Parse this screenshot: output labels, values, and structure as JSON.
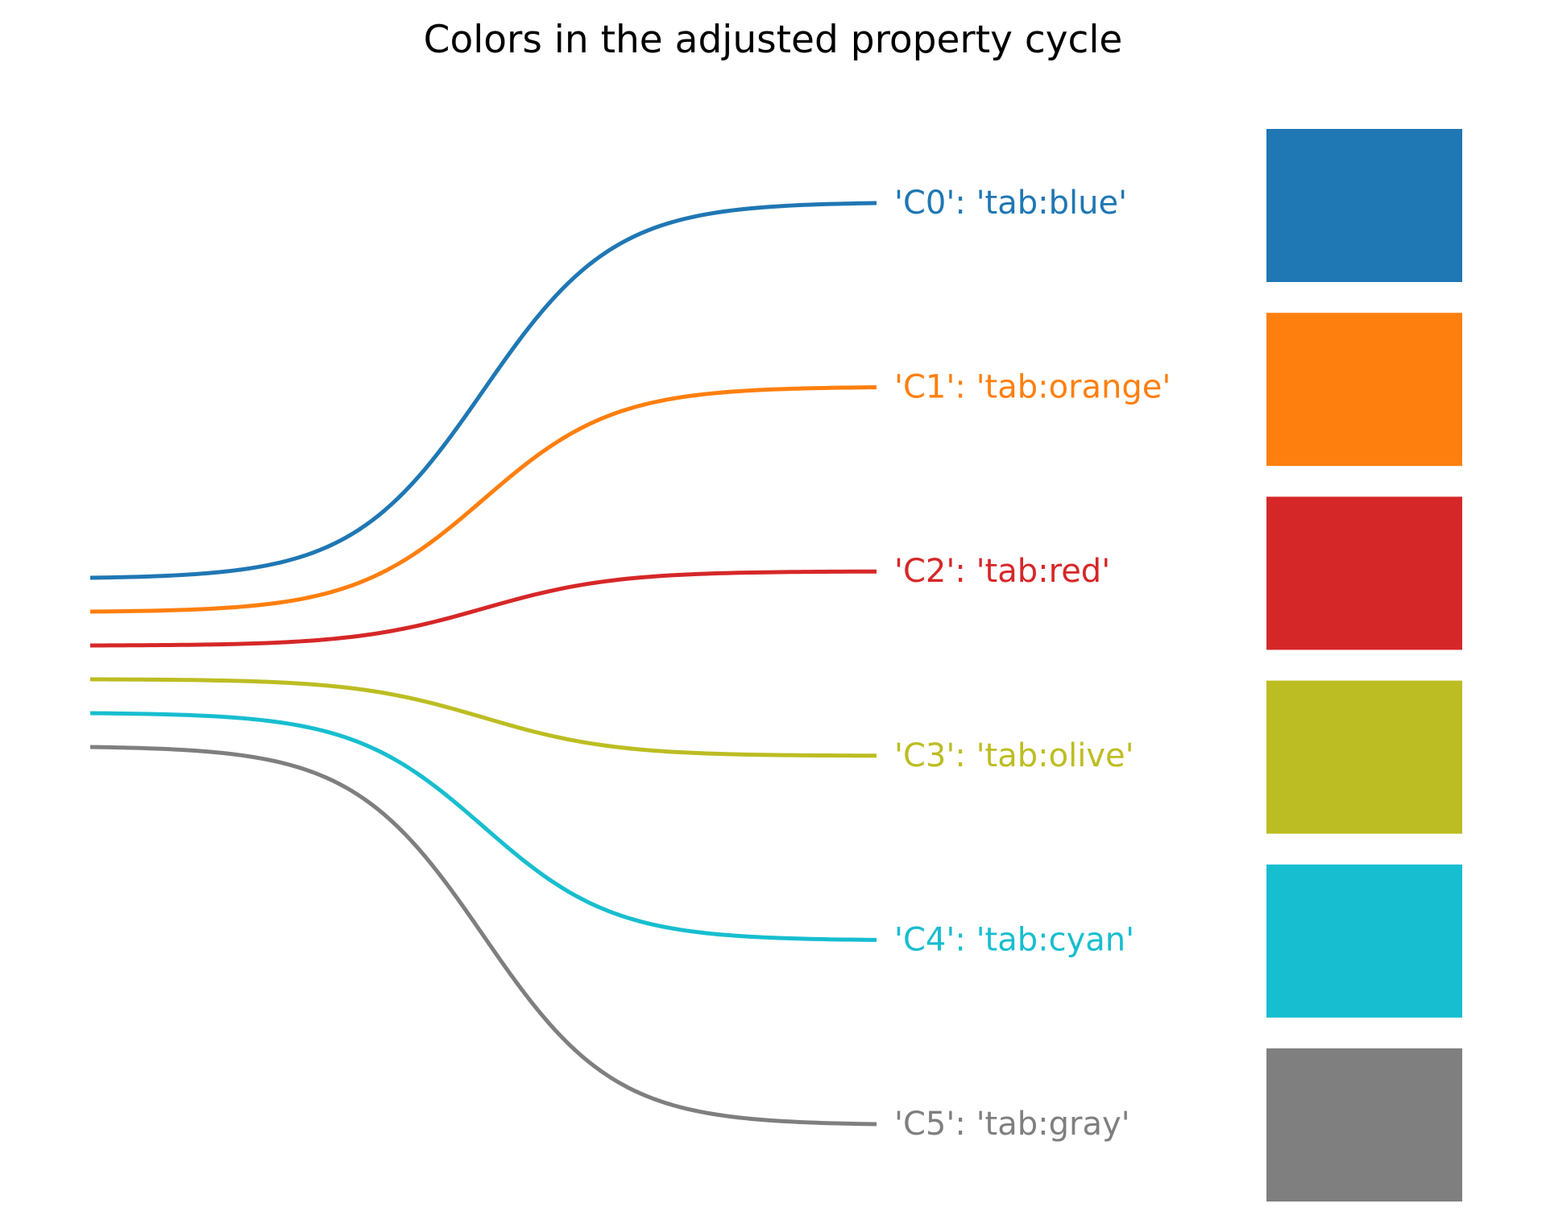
{
  "chart_data": {
    "type": "line",
    "title": "Colors in the adjusted property cycle",
    "xlabel": "",
    "ylabel": "",
    "grid": false,
    "axes_visible": false,
    "curve_shape": "sigmoid",
    "series": [
      {
        "cycle_key": "C0",
        "color_name": "tab:blue",
        "color": "#1f77b4",
        "label": "'C0': 'tab:blue'"
      },
      {
        "cycle_key": "C1",
        "color_name": "tab:orange",
        "color": "#ff7f0e",
        "label": "'C1': 'tab:orange'"
      },
      {
        "cycle_key": "C2",
        "color_name": "tab:red",
        "color": "#d62728",
        "label": "'C2': 'tab:red'"
      },
      {
        "cycle_key": "C3",
        "color_name": "tab:olive",
        "color": "#bcbd22",
        "label": "'C3': 'tab:olive'"
      },
      {
        "cycle_key": "C4",
        "color_name": "tab:cyan",
        "color": "#17becf",
        "label": "'C4': 'tab:cyan'"
      },
      {
        "cycle_key": "C5",
        "color_name": "tab:gray",
        "color": "#7f7f7f",
        "label": "'C5': 'tab:gray'"
      }
    ]
  }
}
